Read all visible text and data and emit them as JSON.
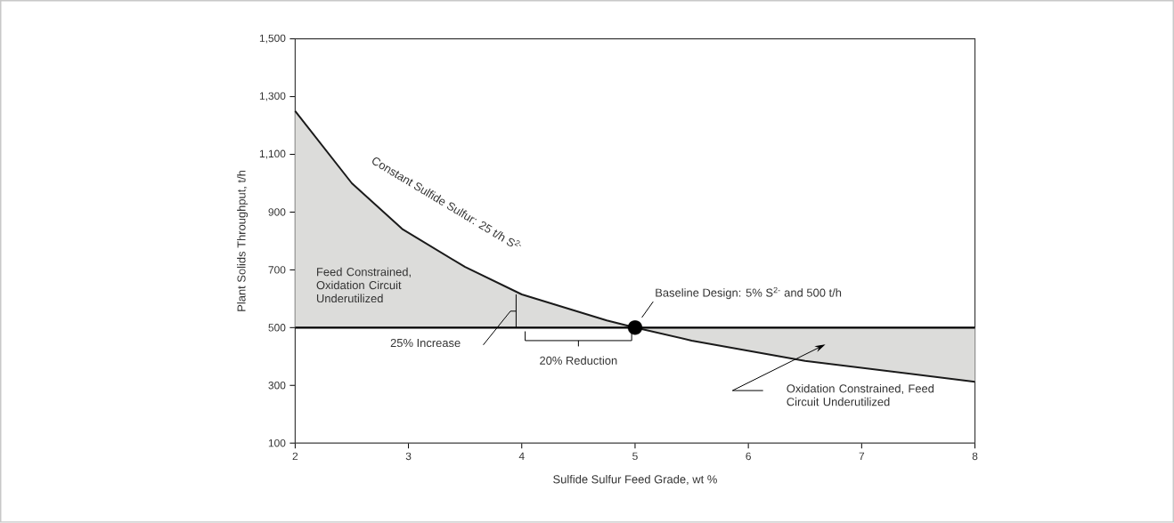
{
  "chart_data": {
    "type": "line",
    "xlabel": "Sulfide Sulfur Feed Grade, wt %",
    "ylabel": "Plant Solids Throughput, t/h",
    "xlim": [
      2,
      8
    ],
    "ylim": [
      100,
      1500
    ],
    "xticks": [
      2,
      3,
      4,
      5,
      6,
      7,
      8
    ],
    "yticks": [
      100,
      300,
      500,
      700,
      900,
      {
        "value": 1100,
        "label": "1,100"
      },
      {
        "value": 1300,
        "label": "1,300"
      },
      {
        "value": 1500,
        "label": "1,500"
      }
    ],
    "grid": false,
    "marker": "circle",
    "series": [
      {
        "name": "Constant Sulfide Sulfur: 25 t/h S$^{2-}$",
        "type": "line",
        "marker": "none",
        "color": "#1a1a1a",
        "x": [
          2,
          2.5,
          2.95,
          3.5,
          4,
          4.75,
          5,
          5.5,
          6.5,
          8
        ],
        "values": [
          1250,
          1000,
          840,
          710,
          615,
          525,
          500,
          455,
          385,
          312
        ]
      },
      {
        "type": "scatter",
        "color": "#000000",
        "x": [
          5
        ],
        "values": [
          500
        ]
      }
    ],
    "ref_lines": [
      {
        "axis": "y",
        "value": 500,
        "color": "#000000"
      }
    ],
    "annotations": [
      "Feed Constrained, Oxidation Circuit Underutilized",
      "25% Increase",
      "20% Reduction",
      "Baseline Design: 5% S$^{2-}$ and 500 t/h",
      "Oxidation Constrained, Feed Circuit Underutilized"
    ]
  }
}
